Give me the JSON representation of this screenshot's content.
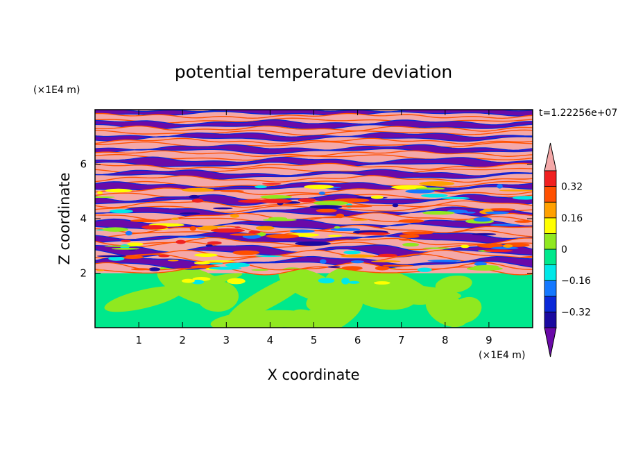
{
  "chart_data": {
    "type": "heatmap",
    "title": "potential temperature deviation",
    "xlabel": "X coordinate",
    "ylabel": "Z coordinate",
    "x_unit": "(×1E4 m)",
    "y_unit": "(×1E4 m)",
    "time_label": "t=1.22256e+07",
    "xlim": [
      0,
      10
    ],
    "ylim": [
      0,
      8
    ],
    "x_ticks": [
      1,
      2,
      3,
      4,
      5,
      6,
      7,
      8,
      9
    ],
    "x_tick_labels": [
      "1",
      "2",
      "3",
      "4",
      "5",
      "6",
      "7",
      "8",
      "9"
    ],
    "y_ticks": [
      2,
      4,
      6
    ],
    "y_tick_labels": [
      "2",
      "4",
      "6"
    ],
    "colorbar": {
      "levels": [
        -0.4,
        -0.32,
        -0.24,
        -0.16,
        -0.08,
        0,
        0.08,
        0.16,
        0.24,
        0.32,
        0.4
      ],
      "colors": [
        "#6a0aa8",
        "#1a0aa0",
        "#0a28d8",
        "#1478ff",
        "#00e8e8",
        "#00e88c",
        "#90e820",
        "#ffff00",
        "#ffa000",
        "#ff5000",
        "#f02020",
        "#f4a8a8"
      ],
      "tick_values": [
        0.32,
        0.16,
        0,
        -0.16,
        -0.32
      ],
      "tick_labels": [
        "0.32",
        "0.16",
        "0",
        "−0.16",
        "−0.32"
      ],
      "extend": "both"
    },
    "regions": [
      {
        "z_range": [
          0,
          2
        ],
        "description_values": "near-neutral deviations between -0.08 and 0.08"
      },
      {
        "z_range": [
          2,
          8
        ],
        "description_values": "alternating layers from below -0.4 to above 0.4"
      }
    ]
  }
}
